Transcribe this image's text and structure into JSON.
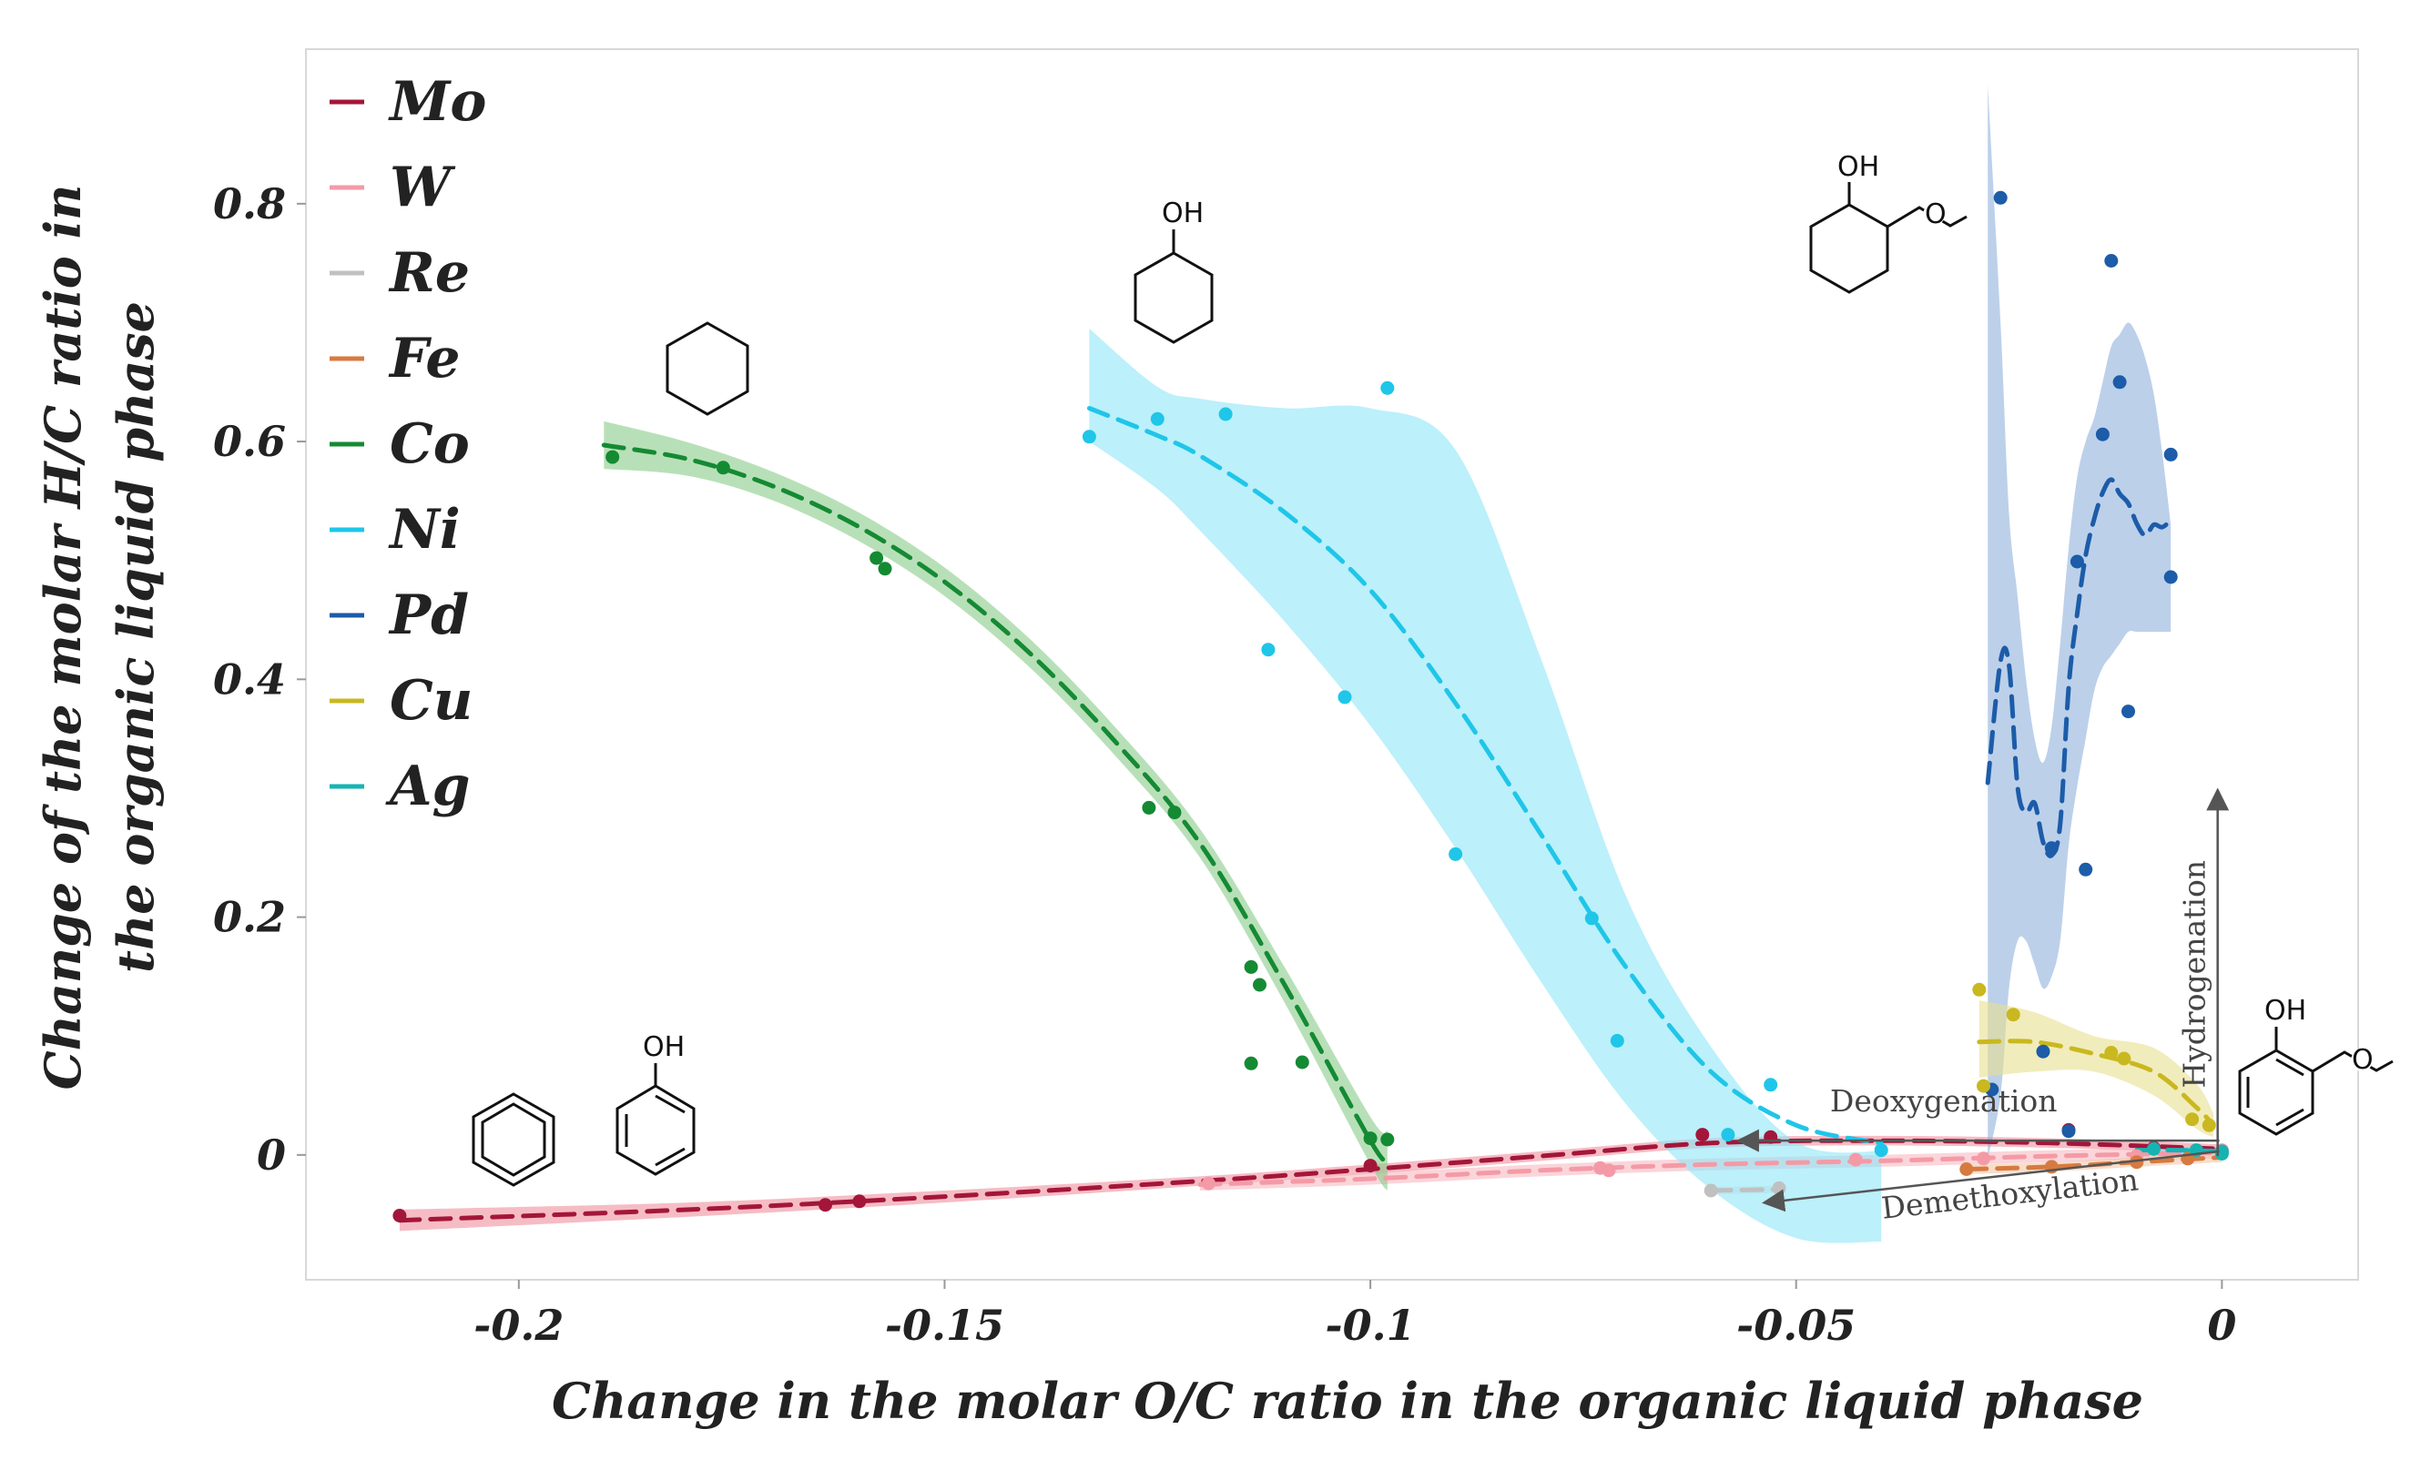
{
  "chart_data": {
    "type": "scatter",
    "title": "",
    "xlabel": "Change in the molar O/C ratio in the organic liquid phase",
    "ylabel_lines": [
      "Change of the molar H/C ratio in",
      "the organic liquid phase"
    ],
    "xlim": [
      -0.225,
      0.016
    ],
    "ylim": [
      -0.105,
      0.93
    ],
    "x_ticks": [
      -0.2,
      -0.15,
      -0.1,
      -0.05,
      0
    ],
    "x_tick_labels": [
      "-0.2",
      "-0.15",
      "-0.1",
      "-0.05",
      "0"
    ],
    "y_ticks": [
      0,
      0.2,
      0.4,
      0.6,
      0.8
    ],
    "y_tick_labels": [
      "0",
      "0.2",
      "0.4",
      "0.6",
      "0.8"
    ],
    "legend_position": "top-left",
    "series": [
      {
        "name": "Mo",
        "color": "#a3163a",
        "band_color": "#f08f9c",
        "points": [
          [
            -0.214,
            -0.051
          ],
          [
            -0.164,
            -0.042
          ],
          [
            -0.16,
            -0.039
          ],
          [
            -0.1,
            -0.009
          ],
          [
            -0.061,
            0.017
          ],
          [
            -0.053,
            0.015
          ],
          [
            -0.018,
            0.021
          ],
          [
            -0.008,
            0.006
          ],
          [
            0,
            0.003
          ]
        ],
        "fit": [
          [
            -0.214,
            -0.055
          ],
          [
            -0.18,
            -0.046
          ],
          [
            -0.15,
            -0.035
          ],
          [
            -0.12,
            -0.022
          ],
          [
            -0.1,
            -0.012
          ],
          [
            -0.08,
            -0.001
          ],
          [
            -0.06,
            0.01
          ],
          [
            -0.04,
            0.012
          ],
          [
            -0.02,
            0.01
          ],
          [
            0,
            0.005
          ]
        ],
        "band": [
          0.009,
          0.006,
          0.005,
          0.004,
          0.004,
          0.004,
          0.004,
          0.004,
          0.004,
          0.004
        ]
      },
      {
        "name": "W",
        "color": "#f49aa6",
        "band_color": "#f7b9c1",
        "points": [
          [
            -0.119,
            -0.024
          ],
          [
            -0.073,
            -0.011
          ],
          [
            -0.072,
            -0.013
          ],
          [
            -0.043,
            -0.004
          ],
          [
            -0.028,
            -0.003
          ],
          [
            -0.01,
            -0.001
          ],
          [
            0,
            0.004
          ]
        ],
        "fit": [
          [
            -0.12,
            -0.025
          ],
          [
            -0.1,
            -0.02
          ],
          [
            -0.08,
            -0.013
          ],
          [
            -0.06,
            -0.008
          ],
          [
            -0.04,
            -0.005
          ],
          [
            -0.02,
            -0.001
          ],
          [
            0,
            0.002
          ]
        ],
        "band": [
          0.005,
          0.005,
          0.005,
          0.005,
          0.005,
          0.005,
          0.005
        ]
      },
      {
        "name": "Re",
        "color": "#c0c0c0",
        "band_color": "#dcdcdc",
        "points": [
          [
            -0.06,
            -0.03
          ],
          [
            -0.052,
            -0.028
          ],
          [
            0,
            0.002
          ]
        ],
        "fit": [
          [
            -0.06,
            -0.03
          ],
          [
            -0.052,
            -0.029
          ]
        ],
        "band": [
          0.003,
          0.003
        ]
      },
      {
        "name": "Fe",
        "color": "#d77a40",
        "band_color": "#f0c8a8",
        "points": [
          [
            -0.03,
            -0.012
          ],
          [
            -0.02,
            -0.01
          ],
          [
            -0.01,
            -0.006
          ],
          [
            -0.004,
            -0.003
          ],
          [
            0,
            0.002
          ]
        ],
        "fit": [
          [
            -0.03,
            -0.012
          ],
          [
            -0.02,
            -0.01
          ],
          [
            -0.01,
            -0.006
          ],
          [
            0,
            -0.002
          ]
        ],
        "band": [
          0.004,
          0.004,
          0.004,
          0.004
        ]
      },
      {
        "name": "Co",
        "color": "#148a33",
        "band_color": "#88cc88",
        "points": [
          [
            -0.189,
            0.587
          ],
          [
            -0.176,
            0.578
          ],
          [
            -0.158,
            0.502
          ],
          [
            -0.157,
            0.493
          ],
          [
            -0.126,
            0.292
          ],
          [
            -0.123,
            0.288
          ],
          [
            -0.114,
            0.158
          ],
          [
            -0.113,
            0.143
          ],
          [
            -0.114,
            0.077
          ],
          [
            -0.108,
            0.078
          ],
          [
            -0.1,
            0.014
          ],
          [
            -0.098,
            0.013
          ]
        ],
        "fit": [
          [
            -0.19,
            0.597
          ],
          [
            -0.18,
            0.585
          ],
          [
            -0.17,
            0.562
          ],
          [
            -0.16,
            0.528
          ],
          [
            -0.15,
            0.482
          ],
          [
            -0.14,
            0.422
          ],
          [
            -0.13,
            0.348
          ],
          [
            -0.12,
            0.262
          ],
          [
            -0.11,
            0.142
          ],
          [
            -0.1,
            0.012
          ],
          [
            -0.098,
            -0.005
          ]
        ],
        "band": [
          0.02,
          0.014,
          0.012,
          0.012,
          0.012,
          0.012,
          0.012,
          0.012,
          0.015,
          0.02,
          0.025
        ]
      },
      {
        "name": "Ni",
        "color": "#1fc6e8",
        "band_color": "#8fe6f8",
        "points": [
          [
            -0.133,
            0.604
          ],
          [
            -0.125,
            0.619
          ],
          [
            -0.117,
            0.623
          ],
          [
            -0.112,
            0.425
          ],
          [
            -0.103,
            0.385
          ],
          [
            -0.098,
            0.645
          ],
          [
            -0.09,
            0.253
          ],
          [
            -0.074,
            0.199
          ],
          [
            -0.071,
            0.096
          ],
          [
            -0.058,
            0.017
          ],
          [
            -0.053,
            0.059
          ],
          [
            -0.04,
            0.004
          ]
        ],
        "fit": [
          [
            -0.133,
            0.628
          ],
          [
            -0.125,
            0.605
          ],
          [
            -0.12,
            0.588
          ],
          [
            -0.11,
            0.54
          ],
          [
            -0.1,
            0.475
          ],
          [
            -0.09,
            0.38
          ],
          [
            -0.08,
            0.27
          ],
          [
            -0.07,
            0.158
          ],
          [
            -0.06,
            0.07
          ],
          [
            -0.05,
            0.025
          ],
          [
            -0.04,
            0.01
          ]
        ],
        "band_upper": [
          0.695,
          0.646,
          0.636,
          0.628,
          0.628,
          0.593,
          0.418,
          0.218,
          0.091,
          0.011,
          0.003
        ],
        "band_lower": [
          0.6,
          0.56,
          0.525,
          0.448,
          0.361,
          0.258,
          0.146,
          0.043,
          -0.029,
          -0.07,
          -0.073
        ]
      },
      {
        "name": "Pd",
        "color": "#1c5ca8",
        "band_color": "#8fb1dc",
        "points": [
          [
            -0.026,
            0.805
          ],
          [
            -0.013,
            0.752
          ],
          [
            -0.012,
            0.65
          ],
          [
            -0.014,
            0.606
          ],
          [
            -0.006,
            0.589
          ],
          [
            -0.017,
            0.499
          ],
          [
            -0.006,
            0.486
          ],
          [
            -0.011,
            0.373
          ],
          [
            -0.02,
            0.258
          ],
          [
            -0.016,
            0.24
          ],
          [
            -0.021,
            0.087
          ],
          [
            -0.018,
            0.02
          ],
          [
            -0.027,
            0.055
          ]
        ],
        "fit": [
          [
            -0.0275,
            0.313
          ],
          [
            -0.026,
            0.415
          ],
          [
            -0.025,
            0.412
          ],
          [
            -0.024,
            0.31
          ],
          [
            -0.023,
            0.288
          ],
          [
            -0.022,
            0.296
          ],
          [
            -0.021,
            0.263
          ],
          [
            -0.02,
            0.252
          ],
          [
            -0.019,
            0.278
          ],
          [
            -0.018,
            0.393
          ],
          [
            -0.017,
            0.455
          ],
          [
            -0.016,
            0.504
          ],
          [
            -0.015,
            0.535
          ],
          [
            -0.014,
            0.557
          ],
          [
            -0.013,
            0.568
          ],
          [
            -0.012,
            0.556
          ],
          [
            -0.011,
            0.548
          ],
          [
            -0.01,
            0.531
          ],
          [
            -0.009,
            0.521
          ],
          [
            -0.008,
            0.53
          ],
          [
            -0.007,
            0.528
          ],
          [
            -0.006,
            0.534
          ]
        ],
        "band_upper": [
          0.9,
          0.7,
          0.54,
          0.47,
          0.4,
          0.35,
          0.33,
          0.36,
          0.43,
          0.51,
          0.57,
          0.6,
          0.62,
          0.65,
          0.68,
          0.69,
          0.7,
          0.69,
          0.67,
          0.64,
          0.59,
          0.53
        ],
        "band_lower": [
          -0.003,
          0.05,
          0.14,
          0.18,
          0.18,
          0.16,
          0.14,
          0.15,
          0.18,
          0.26,
          0.31,
          0.35,
          0.39,
          0.41,
          0.42,
          0.43,
          0.44,
          0.44,
          0.44,
          0.44,
          0.44,
          0.44
        ]
      },
      {
        "name": "Cu",
        "color": "#c9b81f",
        "band_color": "#e7e08f",
        "points": [
          [
            -0.0285,
            0.139
          ],
          [
            -0.0245,
            0.118
          ],
          [
            -0.013,
            0.086
          ],
          [
            -0.0115,
            0.081
          ],
          [
            -0.0015,
            0.025
          ],
          [
            -0.0035,
            0.03
          ],
          [
            -0.028,
            0.058
          ]
        ],
        "fit": [
          [
            -0.0285,
            0.095
          ],
          [
            -0.022,
            0.095
          ],
          [
            -0.015,
            0.085
          ],
          [
            -0.008,
            0.07
          ],
          [
            -0.003,
            0.04
          ],
          [
            -0.001,
            0.025
          ]
        ],
        "band_upper": [
          0.13,
          0.12,
          0.1,
          0.09,
          0.06,
          0.035
        ],
        "band_lower": [
          0.065,
          0.07,
          0.07,
          0.05,
          0.022,
          0.015
        ]
      },
      {
        "name": "Ag",
        "color": "#17b3b3",
        "band_color": "#8fdcdc",
        "points": [
          [
            -0.008,
            0.005
          ],
          [
            -0.003,
            0.004
          ],
          [
            0,
            0.003
          ],
          [
            0,
            0.001
          ]
        ],
        "fit": [
          [
            -0.01,
            0.004
          ],
          [
            -0.005,
            0.004
          ],
          [
            0,
            0.003
          ]
        ],
        "band": [
          0.003,
          0.003,
          0.003
        ]
      }
    ],
    "annotations": [
      {
        "text": "Deoxygenation",
        "x1": -0.0003,
        "y1": 0.012,
        "x2": -0.0565,
        "y2": 0.012
      },
      {
        "text": "Demethoxylation",
        "x1": -0.0003,
        "y1": 0.003,
        "x2": -0.0535,
        "y2": -0.04
      },
      {
        "text": "Hydrogenation",
        "x1": -0.0005,
        "y1": -0.001,
        "x2": -0.0005,
        "y2": 0.305
      }
    ],
    "molecule_labels": {
      "hydroxyl": "OH"
    }
  }
}
